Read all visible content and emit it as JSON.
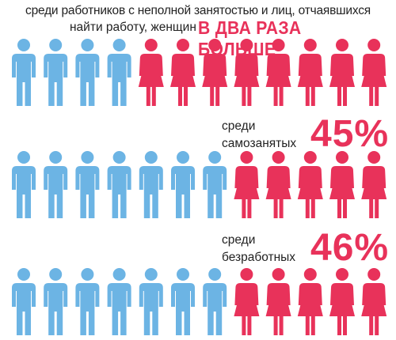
{
  "intro": {
    "line1": "среди работников с неполной занятостью и лиц, отчаявшихся",
    "line2": "найти работу, женщин",
    "highlight": "В ДВА РАЗА БОЛЬШЕ"
  },
  "rows": [
    {
      "label_line1": "",
      "label_line2": "",
      "value": "",
      "men": 4,
      "women": 8
    },
    {
      "label_line1": "среди",
      "label_line2": "самозанятых",
      "value": "45%",
      "men": 7,
      "women": 5
    },
    {
      "label_line1": "среди",
      "label_line2": "безработных",
      "value": "46%",
      "men": 7,
      "women": 5
    }
  ],
  "colors": {
    "men": "#6cb4e4",
    "women": "#e8325a",
    "text": "#222222"
  },
  "icons": {
    "man": "man-icon",
    "woman": "woman-icon"
  }
}
